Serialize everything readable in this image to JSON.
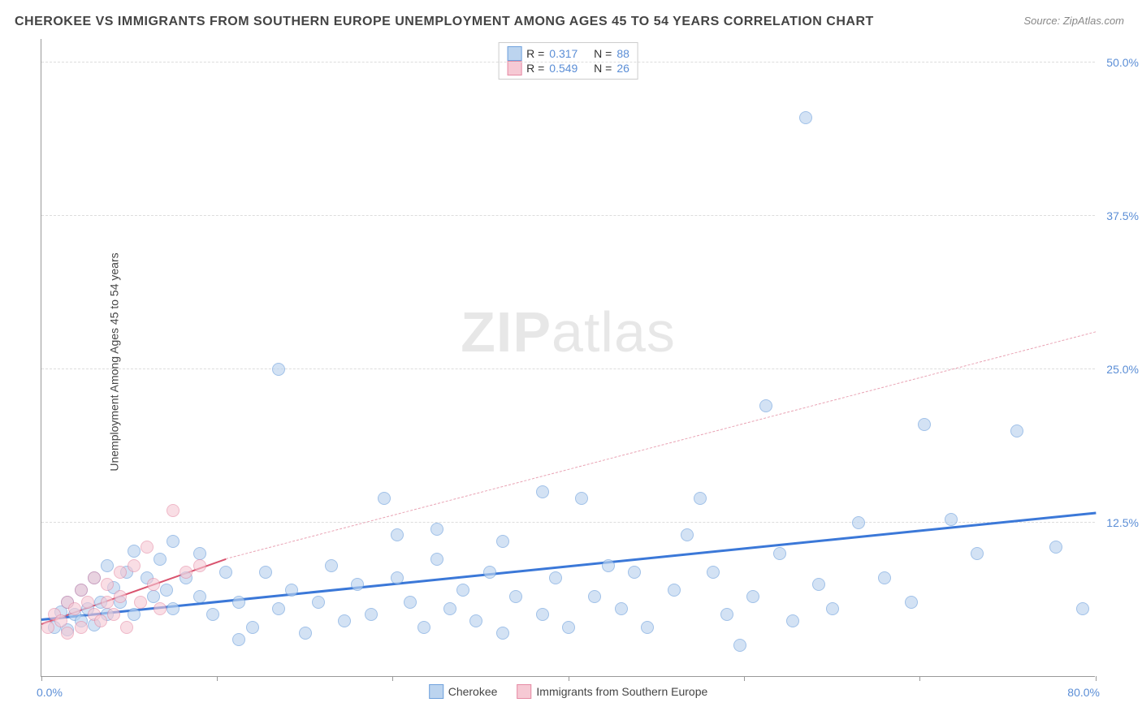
{
  "title": "CHEROKEE VS IMMIGRANTS FROM SOUTHERN EUROPE UNEMPLOYMENT AMONG AGES 45 TO 54 YEARS CORRELATION CHART",
  "source": "Source: ZipAtlas.com",
  "ylabel": "Unemployment Among Ages 45 to 54 years",
  "watermark_bold": "ZIP",
  "watermark_thin": "atlas",
  "chart": {
    "type": "scatter",
    "xlim": [
      0,
      80
    ],
    "ylim": [
      0,
      52
    ],
    "x_min_label": "0.0%",
    "x_max_label": "80.0%",
    "xtick_positions": [
      0,
      13.3,
      26.6,
      40,
      53.3,
      66.6,
      80
    ],
    "yticks": [
      {
        "v": 12.5,
        "label": "12.5%"
      },
      {
        "v": 25.0,
        "label": "25.0%"
      },
      {
        "v": 37.5,
        "label": "37.5%"
      },
      {
        "v": 50.0,
        "label": "50.0%"
      }
    ],
    "background_color": "#ffffff",
    "grid_color": "#dddddd",
    "marker_radius": 8,
    "marker_border_width": 1.2,
    "series": [
      {
        "name": "Cherokee",
        "fill": "#bcd4ef",
        "stroke": "#6fa1dd",
        "fill_opacity": 0.65,
        "R": "0.317",
        "N": "88",
        "trend": {
          "x0": 0,
          "y0": 4.5,
          "x1": 80,
          "y1": 13.2,
          "color": "#3b78d8",
          "width": 3,
          "dash": "solid"
        },
        "points": [
          [
            1,
            4.0
          ],
          [
            1.5,
            5.2
          ],
          [
            2,
            3.8
          ],
          [
            2,
            6.0
          ],
          [
            2.5,
            5.0
          ],
          [
            3,
            4.5
          ],
          [
            3,
            7.0
          ],
          [
            3.5,
            5.5
          ],
          [
            4,
            4.2
          ],
          [
            4,
            8.0
          ],
          [
            4.5,
            6.0
          ],
          [
            5,
            5.0
          ],
          [
            5,
            9.0
          ],
          [
            5.5,
            7.2
          ],
          [
            6,
            6.0
          ],
          [
            6.5,
            8.5
          ],
          [
            7,
            5.0
          ],
          [
            7,
            10.2
          ],
          [
            8,
            8.0
          ],
          [
            8.5,
            6.5
          ],
          [
            9,
            9.5
          ],
          [
            9.5,
            7.0
          ],
          [
            10,
            5.5
          ],
          [
            10,
            11.0
          ],
          [
            11,
            8.0
          ],
          [
            12,
            6.5
          ],
          [
            12,
            10.0
          ],
          [
            13,
            5.0
          ],
          [
            14,
            8.5
          ],
          [
            15,
            6.0
          ],
          [
            15,
            3.0
          ],
          [
            16,
            4.0
          ],
          [
            17,
            8.5
          ],
          [
            18,
            5.5
          ],
          [
            18,
            25.0
          ],
          [
            19,
            7.0
          ],
          [
            20,
            3.5
          ],
          [
            21,
            6.0
          ],
          [
            22,
            9.0
          ],
          [
            23,
            4.5
          ],
          [
            24,
            7.5
          ],
          [
            25,
            5.0
          ],
          [
            26,
            14.5
          ],
          [
            27,
            8.0
          ],
          [
            27,
            11.5
          ],
          [
            28,
            6.0
          ],
          [
            29,
            4.0
          ],
          [
            30,
            9.5
          ],
          [
            30,
            12.0
          ],
          [
            31,
            5.5
          ],
          [
            32,
            7.0
          ],
          [
            33,
            4.5
          ],
          [
            34,
            8.5
          ],
          [
            35,
            3.5
          ],
          [
            35,
            11.0
          ],
          [
            36,
            6.5
          ],
          [
            38,
            5.0
          ],
          [
            38,
            15.0
          ],
          [
            39,
            8.0
          ],
          [
            40,
            4.0
          ],
          [
            41,
            14.5
          ],
          [
            42,
            6.5
          ],
          [
            43,
            9.0
          ],
          [
            44,
            5.5
          ],
          [
            45,
            8.5
          ],
          [
            46,
            4.0
          ],
          [
            48,
            7.0
          ],
          [
            49,
            11.5
          ],
          [
            50,
            14.5
          ],
          [
            51,
            8.5
          ],
          [
            52,
            5.0
          ],
          [
            53,
            2.5
          ],
          [
            54,
            6.5
          ],
          [
            55,
            22.0
          ],
          [
            56,
            10.0
          ],
          [
            57,
            4.5
          ],
          [
            58,
            45.5
          ],
          [
            59,
            7.5
          ],
          [
            60,
            5.5
          ],
          [
            62,
            12.5
          ],
          [
            64,
            8.0
          ],
          [
            66,
            6.0
          ],
          [
            67,
            20.5
          ],
          [
            69,
            12.8
          ],
          [
            71,
            10.0
          ],
          [
            74,
            20.0
          ],
          [
            77,
            10.5
          ],
          [
            79,
            5.5
          ]
        ]
      },
      {
        "name": "Immigrants from Southern Europe",
        "fill": "#f6c9d4",
        "stroke": "#e68aa4",
        "fill_opacity": 0.6,
        "R": "0.549",
        "N": "26",
        "trend": {
          "x0": 0,
          "y0": 4.2,
          "x1": 14,
          "y1": 9.5,
          "color": "#d9536e",
          "width": 2,
          "dash": "solid"
        },
        "trend_ext": {
          "x0": 14,
          "y0": 9.5,
          "x1": 80,
          "y1": 28.0,
          "color": "#e9a3b4",
          "width": 1.5,
          "dash": "dashed"
        },
        "points": [
          [
            0.5,
            4.0
          ],
          [
            1,
            5.0
          ],
          [
            1.5,
            4.5
          ],
          [
            2,
            6.0
          ],
          [
            2,
            3.5
          ],
          [
            2.5,
            5.5
          ],
          [
            3,
            4.0
          ],
          [
            3,
            7.0
          ],
          [
            3.5,
            6.0
          ],
          [
            4,
            5.0
          ],
          [
            4,
            8.0
          ],
          [
            4.5,
            4.5
          ],
          [
            5,
            7.5
          ],
          [
            5,
            6.0
          ],
          [
            5.5,
            5.0
          ],
          [
            6,
            8.5
          ],
          [
            6,
            6.5
          ],
          [
            6.5,
            4.0
          ],
          [
            7,
            9.0
          ],
          [
            7.5,
            6.0
          ],
          [
            8,
            10.5
          ],
          [
            8.5,
            7.5
          ],
          [
            9,
            5.5
          ],
          [
            10,
            13.5
          ],
          [
            11,
            8.5
          ],
          [
            12,
            9.0
          ]
        ]
      }
    ]
  },
  "legend_bottom": [
    {
      "label": "Cherokee",
      "fill": "#bcd4ef",
      "stroke": "#6fa1dd"
    },
    {
      "label": "Immigrants from Southern Europe",
      "fill": "#f6c9d4",
      "stroke": "#e68aa4"
    }
  ]
}
